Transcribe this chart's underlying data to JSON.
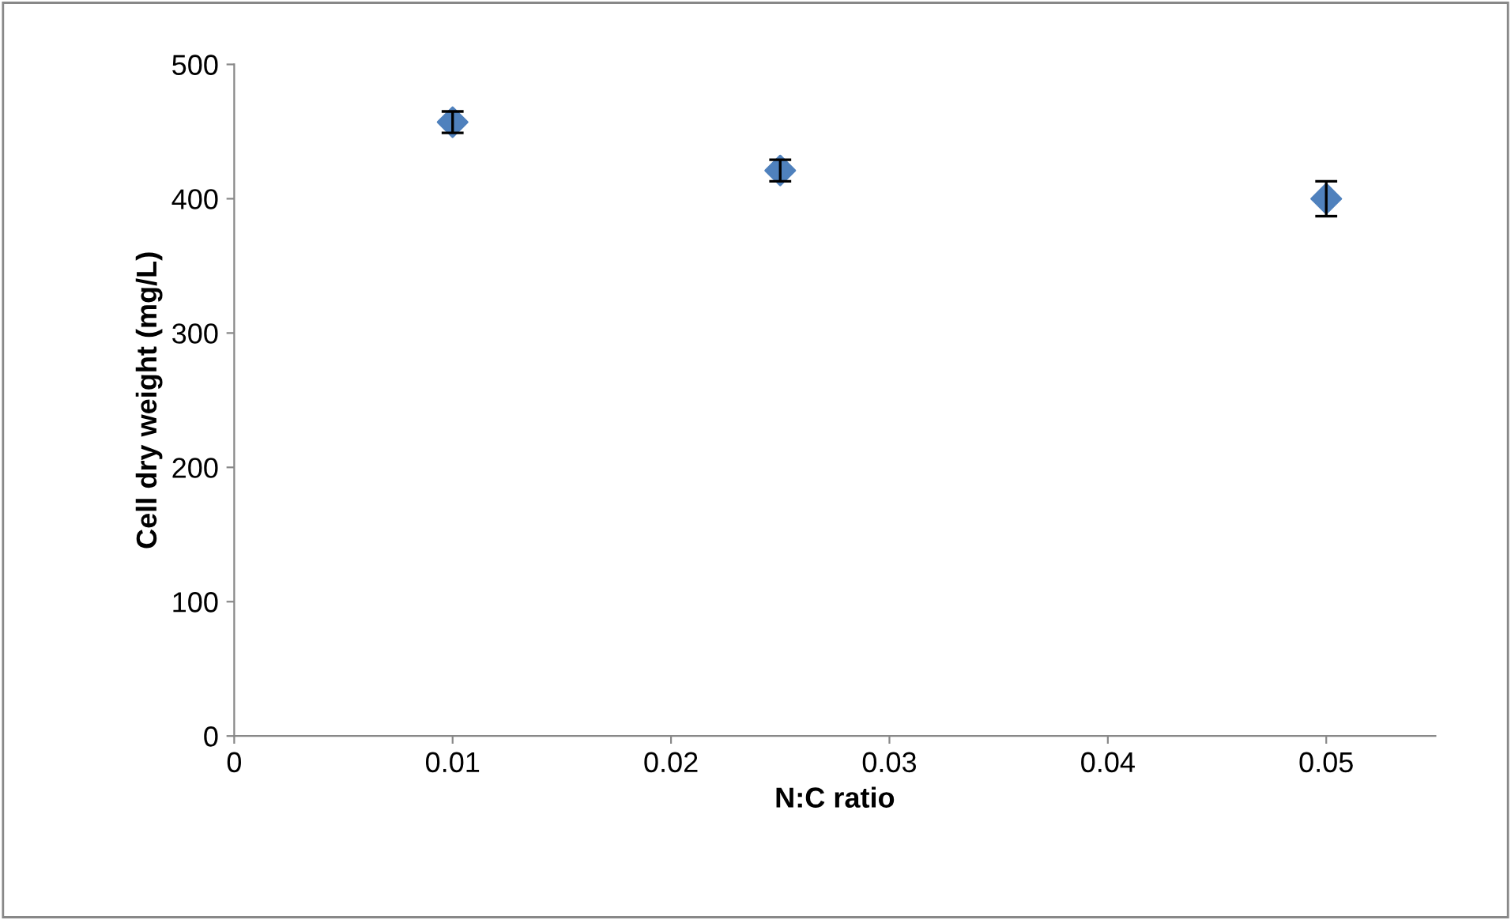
{
  "chart_data": {
    "type": "scatter",
    "xlabel": "N:C ratio",
    "ylabel": "Cell dry weight (mg/L)",
    "x": [
      0.01,
      0.025,
      0.05
    ],
    "values": [
      457,
      421,
      400
    ],
    "errors": [
      8,
      8,
      13
    ],
    "color": "#4f81bd",
    "marker": "diamond",
    "xlim": [
      0,
      0.055
    ],
    "xticks": [
      {
        "value": 0,
        "label": "0"
      },
      0.01,
      0.02,
      0.03,
      0.04,
      0.05
    ],
    "ylim": [
      0,
      500
    ],
    "yticks": [
      0,
      100,
      200,
      300,
      400,
      500
    ],
    "grid": false,
    "legend": false
  }
}
